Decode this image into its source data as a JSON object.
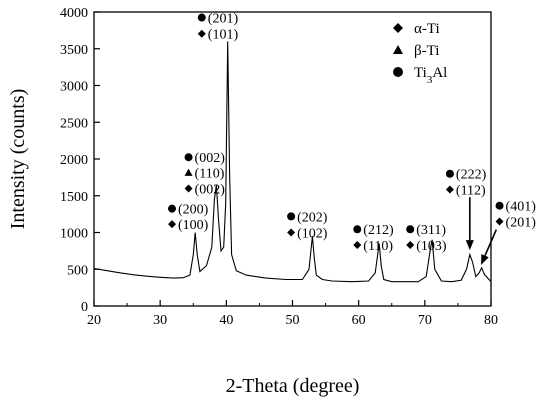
{
  "chart_data": {
    "type": "line",
    "xlabel": "2-Theta (degree)",
    "ylabel": "Intensity (counts)",
    "xlim": [
      20,
      80
    ],
    "ylim": [
      0,
      4000
    ],
    "x_ticks": [
      "20",
      "30",
      "40",
      "50",
      "60",
      "70",
      "80"
    ],
    "y_ticks": [
      "0",
      "500",
      "1000",
      "1500",
      "2000",
      "2500",
      "3000",
      "3500",
      "4000"
    ],
    "grid": false,
    "legend_position": "top-right",
    "legend": [
      {
        "marker": "diamond",
        "label": "α-Ti"
      },
      {
        "marker": "triangle",
        "label": "β-Ti"
      },
      {
        "marker": "circle",
        "label": "Ti",
        "sub": "3",
        "suffix": "Al"
      }
    ],
    "series": [
      {
        "x": [
          20,
          22,
          24,
          26,
          28,
          30,
          32,
          33.5,
          34.5,
          35.0,
          35.3,
          35.6,
          36.0,
          37.0,
          37.8,
          38.2,
          38.5,
          38.8,
          39.2,
          39.6,
          39.9,
          40.2,
          40.5,
          40.8,
          41.5,
          43,
          46,
          49,
          51.5,
          52.5,
          53.0,
          53.3,
          53.6,
          54.5,
          56,
          59,
          61.5,
          62.5,
          63.1,
          63.4,
          63.8,
          65,
          67,
          69,
          70.2,
          70.8,
          71.1,
          71.5,
          72.5,
          74,
          75.5,
          76.3,
          76.8,
          77.2,
          77.7,
          78.2,
          78.6,
          79.0,
          79.4,
          80
        ],
        "y": [
          510,
          480,
          450,
          425,
          405,
          390,
          380,
          385,
          420,
          700,
          1000,
          700,
          470,
          550,
          800,
          1450,
          1650,
          1200,
          750,
          800,
          1400,
          3600,
          1800,
          700,
          480,
          420,
          380,
          360,
          360,
          500,
          950,
          650,
          420,
          360,
          340,
          330,
          340,
          450,
          850,
          550,
          360,
          330,
          330,
          330,
          400,
          750,
          900,
          500,
          340,
          330,
          350,
          500,
          700,
          600,
          400,
          450,
          520,
          430,
          390,
          330
        ]
      }
    ],
    "annotations": [
      {
        "marker": "circle",
        "label": "(201)",
        "x": 37.5,
        "y": 3870
      },
      {
        "marker": "diamond",
        "label": "(101)",
        "x": 37.5,
        "y": 3650
      },
      {
        "marker": "circle",
        "label": "(002)",
        "x": 35.5,
        "y": 1970
      },
      {
        "marker": "triangle",
        "label": "(110)",
        "x": 35.5,
        "y": 1760
      },
      {
        "marker": "diamond",
        "label": "(002)",
        "x": 35.5,
        "y": 1545
      },
      {
        "marker": "circle",
        "label": "(200)",
        "x": 33.0,
        "y": 1270
      },
      {
        "marker": "diamond",
        "label": "(100)",
        "x": 33.0,
        "y": 1060
      },
      {
        "marker": "circle",
        "label": "(202)",
        "x": 51.0,
        "y": 1165
      },
      {
        "marker": "diamond",
        "label": "(102)",
        "x": 51.0,
        "y": 945
      },
      {
        "marker": "circle",
        "label": "(212)",
        "x": 61.0,
        "y": 990
      },
      {
        "marker": "diamond",
        "label": "(110)",
        "x": 61.0,
        "y": 775
      },
      {
        "marker": "circle",
        "label": "(311)",
        "x": 69.0,
        "y": 990
      },
      {
        "marker": "diamond",
        "label": "(103)",
        "x": 69.0,
        "y": 775
      },
      {
        "marker": "circle",
        "label": "(222)",
        "x": 75.0,
        "y": 1745
      },
      {
        "marker": "diamond",
        "label": "(112)",
        "x": 75.0,
        "y": 1530
      },
      {
        "marker": "circle",
        "label": "(401)",
        "x": 82.5,
        "y": 1310
      },
      {
        "marker": "diamond",
        "label": "(201)",
        "x": 82.5,
        "y": 1095
      }
    ],
    "arrows": [
      {
        "from": [
          76.8,
          1480
        ],
        "to": [
          76.8,
          760
        ]
      },
      {
        "from": [
          80.8,
          1040
        ],
        "to": [
          78.5,
          560
        ]
      }
    ]
  }
}
